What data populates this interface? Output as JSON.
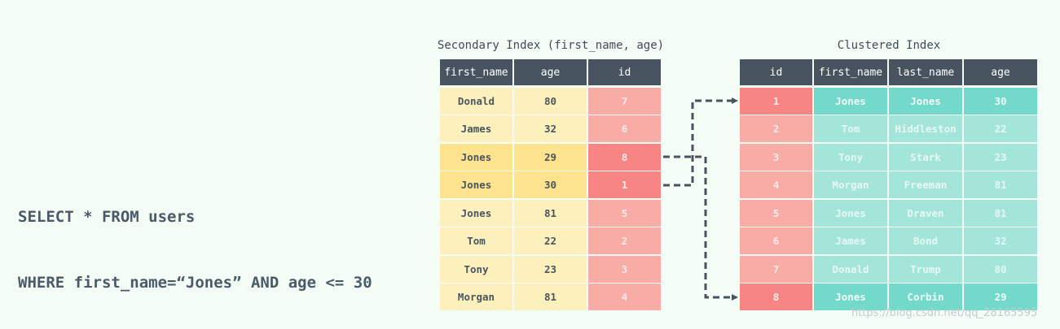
{
  "query": {
    "line1": "SELECT * FROM users",
    "line2": "WHERE first_name=“Jones” AND age <= 30"
  },
  "secondary_index": {
    "title": "Secondary Index (first_name, age)",
    "headers": [
      "first_name",
      "age",
      "id"
    ],
    "rows": [
      {
        "first_name": "Donald",
        "age": "80",
        "id": "7",
        "highlight": false
      },
      {
        "first_name": "James",
        "age": "32",
        "id": "6",
        "highlight": false
      },
      {
        "first_name": "Jones",
        "age": "29",
        "id": "8",
        "highlight": true
      },
      {
        "first_name": "Jones",
        "age": "30",
        "id": "1",
        "highlight": true
      },
      {
        "first_name": "Jones",
        "age": "81",
        "id": "5",
        "highlight": false
      },
      {
        "first_name": "Tom",
        "age": "22",
        "id": "2",
        "highlight": false
      },
      {
        "first_name": "Tony",
        "age": "23",
        "id": "3",
        "highlight": false
      },
      {
        "first_name": "Morgan",
        "age": "81",
        "id": "4",
        "highlight": false
      }
    ]
  },
  "clustered_index": {
    "title": "Clustered Index",
    "headers": [
      "id",
      "first_name",
      "last_name",
      "age"
    ],
    "rows": [
      {
        "id": "1",
        "first_name": "Jones",
        "last_name": "Jones",
        "age": "30",
        "highlight": true
      },
      {
        "id": "2",
        "first_name": "Tom",
        "last_name": "Hiddleston",
        "age": "22",
        "highlight": false
      },
      {
        "id": "3",
        "first_name": "Tony",
        "last_name": "Stark",
        "age": "23",
        "highlight": false
      },
      {
        "id": "4",
        "first_name": "Morgan",
        "last_name": "Freeman",
        "age": "81",
        "highlight": false
      },
      {
        "id": "5",
        "first_name": "Jones",
        "last_name": "Draven",
        "age": "81",
        "highlight": false
      },
      {
        "id": "6",
        "first_name": "James",
        "last_name": "Bond",
        "age": "32",
        "highlight": false
      },
      {
        "id": "7",
        "first_name": "Donald",
        "last_name": "Trump",
        "age": "80",
        "highlight": false
      },
      {
        "id": "8",
        "first_name": "Jones",
        "last_name": "Corbin",
        "age": "29",
        "highlight": true
      }
    ]
  },
  "lookups": [
    {
      "from_id": "1",
      "to_id": "1"
    },
    {
      "from_id": "8",
      "to_id": "8"
    }
  ],
  "watermark": "https://blog.csdn.net/qq_28165595",
  "colors": {
    "background": "#f3fdf6",
    "header": "#47545f",
    "name_cell": "#fcf1bd",
    "name_cell_highlight": "#fde38d",
    "id_cell": "#f8aca5",
    "id_cell_highlight": "#f78583",
    "row_cell": "#a4e5da",
    "row_cell_highlight": "#72d9cb",
    "arrow": "#47545f"
  }
}
